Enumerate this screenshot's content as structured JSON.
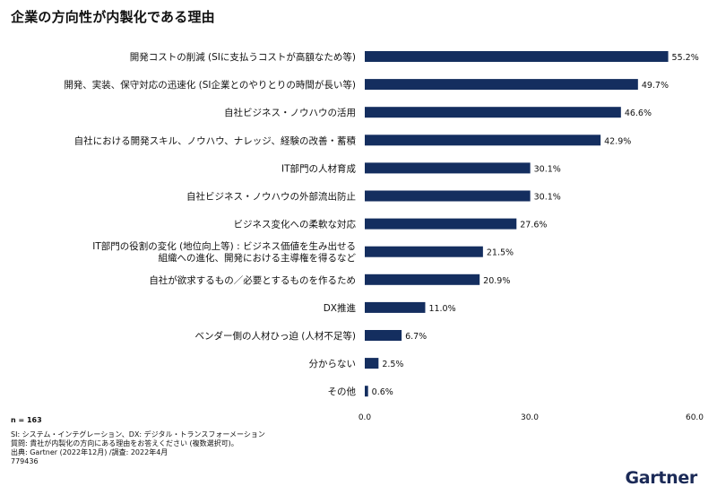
{
  "title": "企業の方向性が内製化である理由",
  "sample_label": "n = 163",
  "footnotes": [
    "SI: システム・インテグレーション、DX: デジタル・トランスフォーメーション",
    "質問: 貴社が内製化の方向にある理由をお答えください (複数選択可)。",
    "出典: Gartner (2022年12月) /調査: 2022年4月",
    "779436"
  ],
  "brand": "Gartner",
  "colors": {
    "bar": "#142e5f",
    "text": "#111111",
    "logo": "#1b2a57"
  },
  "chart_data": {
    "type": "bar",
    "orientation": "horizontal",
    "categories": [
      [
        "開発コストの削減 (SIに支払うコストが高額なため等)"
      ],
      [
        "開発、実装、保守対応の迅速化 (SI企業とのやりとりの時間が長い等)"
      ],
      [
        "自社ビジネス・ノウハウの活用"
      ],
      [
        "自社における開発スキル、ノウハウ、ナレッジ、経験の改善・蓄積"
      ],
      [
        "IT部門の人材育成"
      ],
      [
        "自社ビジネス・ノウハウの外部流出防止"
      ],
      [
        "ビジネス変化への柔軟な対応"
      ],
      [
        "IT部門の役割の変化 (地位向上等) : ビジネス価値を生み出せる",
        "組織への進化、開発における主導権を得るなど"
      ],
      [
        "自社が欲求するもの／必要とするものを作るため"
      ],
      [
        "DX推進"
      ],
      [
        "ベンダー側の人材ひっ迫 (人材不足等)"
      ],
      [
        "分からない"
      ],
      [
        "その他"
      ]
    ],
    "values": [
      55.2,
      49.7,
      46.6,
      42.9,
      30.1,
      30.1,
      27.6,
      21.5,
      20.9,
      11.0,
      6.7,
      2.5,
      0.6
    ],
    "value_labels": [
      "55.2%",
      "49.7%",
      "46.6%",
      "42.9%",
      "30.1%",
      "30.1%",
      "27.6%",
      "21.5%",
      "20.9%",
      "11.0%",
      "6.7%",
      "2.5%",
      "0.6%"
    ],
    "xlim": [
      0,
      60
    ],
    "x_ticks": [
      "0.0",
      "30.0",
      "60.0"
    ],
    "x_tick_values": [
      0,
      30,
      60
    ],
    "grid": false
  }
}
